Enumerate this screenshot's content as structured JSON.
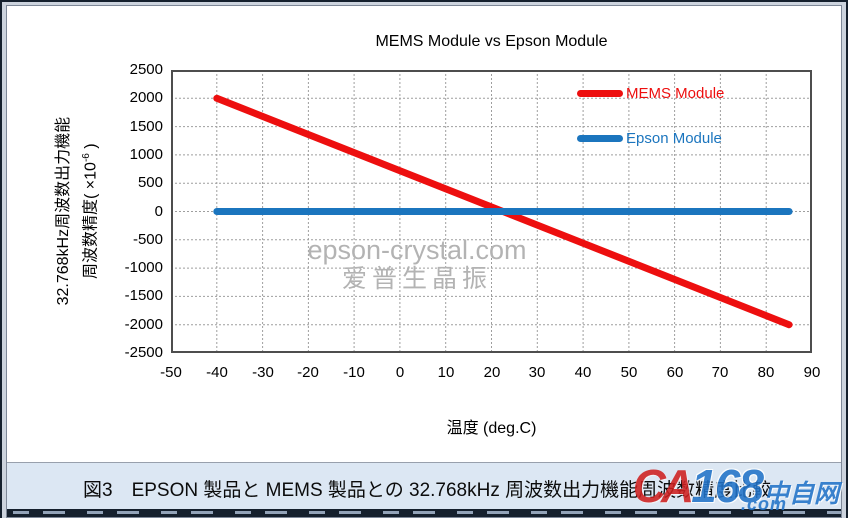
{
  "chart": {
    "title": "MEMS Module vs Epson Module",
    "ylabel_line1": "32.768kHz周波数出力機能",
    "ylabel_line2_pre": "周波数精度( ×10",
    "ylabel_exp": "-6",
    "ylabel_line2_post": " )",
    "xlabel": "温度 (deg.C)",
    "watermark_line1": "epson-crystal.com",
    "watermark_line2": "爱普生晶振"
  },
  "chart_data": {
    "type": "line",
    "title": "MEMS Module vs Epson Module",
    "xlabel": "温度 (deg.C)",
    "ylabel": "32.768kHz周波数出力機能 周波数精度( ×10^-6 )",
    "xlim": [
      -50,
      90
    ],
    "ylim": [
      -2500,
      2500
    ],
    "x_ticks": [
      -50,
      -40,
      -30,
      -20,
      -10,
      0,
      10,
      20,
      30,
      40,
      50,
      60,
      70,
      80,
      90
    ],
    "y_ticks": [
      2500,
      2000,
      1500,
      1000,
      500,
      0,
      -500,
      -1000,
      -1500,
      -2000,
      -2500
    ],
    "grid": "dashed",
    "legend_position": "top-right-inside",
    "series": [
      {
        "name": "MEMS Module",
        "color": "#ED0F0F",
        "points": [
          [
            -40,
            2000
          ],
          [
            85,
            -2000
          ]
        ]
      },
      {
        "name": "Epson Module",
        "color": "#1B75BE",
        "points": [
          [
            -40,
            0
          ],
          [
            85,
            0
          ]
        ]
      }
    ]
  },
  "caption": {
    "text": "図3　EPSON 製品と MEMS 製品との 32.768kHz 周波数出力機能周波数精度比較"
  },
  "logo": {
    "part1": "CA",
    "part2": "168",
    "part3": "中自网",
    "part4": ".com",
    "color_red": "#CF2020",
    "color_blue": "#2273C8"
  }
}
